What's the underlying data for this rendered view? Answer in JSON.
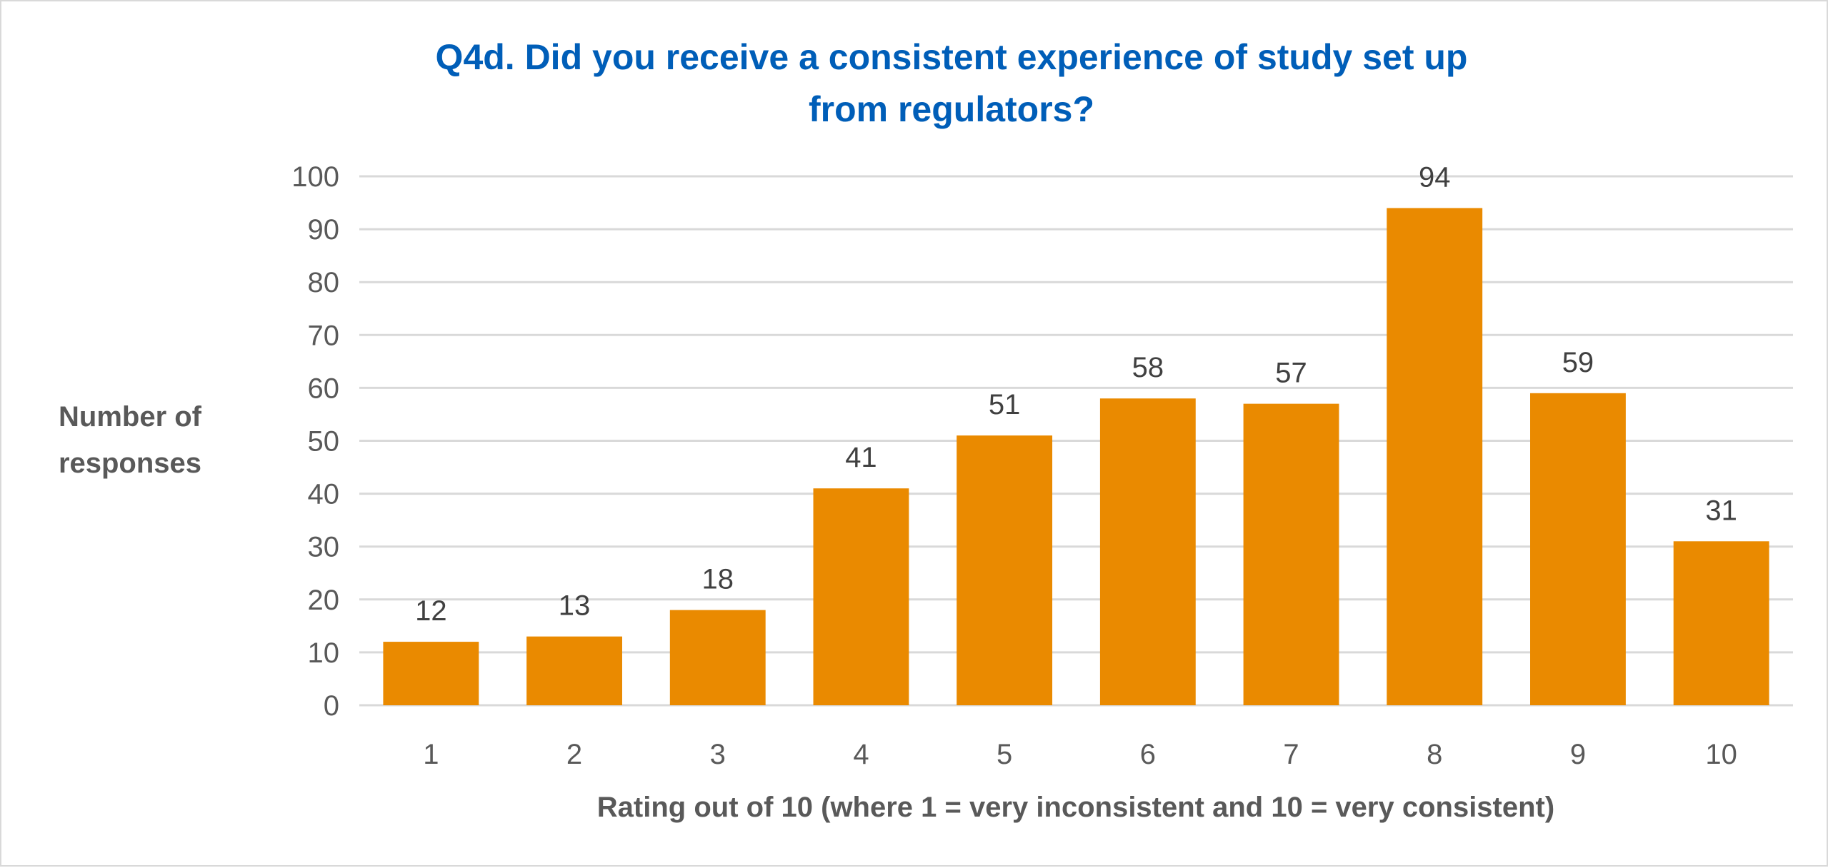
{
  "chart_data": {
    "type": "bar",
    "title_lines": [
      "Q4d. Did you receive a consistent experience of study set up",
      "from regulators?"
    ],
    "xlabel": "Rating out of 10 (where 1 = very inconsistent and 10 = very consistent)",
    "ylabel_lines": [
      "Number of",
      "responses"
    ],
    "categories": [
      "1",
      "2",
      "3",
      "4",
      "5",
      "6",
      "7",
      "8",
      "9",
      "10"
    ],
    "values": [
      12,
      13,
      18,
      41,
      51,
      58,
      57,
      94,
      59,
      31
    ],
    "ylim": [
      0,
      100
    ],
    "yticks": [
      0,
      10,
      20,
      30,
      40,
      50,
      60,
      70,
      80,
      90,
      100
    ],
    "grid": true,
    "data_labels": true,
    "colors": {
      "bar": "#EA8A00",
      "title": "#005EB8",
      "text": "#595959",
      "data_label": "#404040",
      "grid": "#D9D9D9"
    }
  }
}
